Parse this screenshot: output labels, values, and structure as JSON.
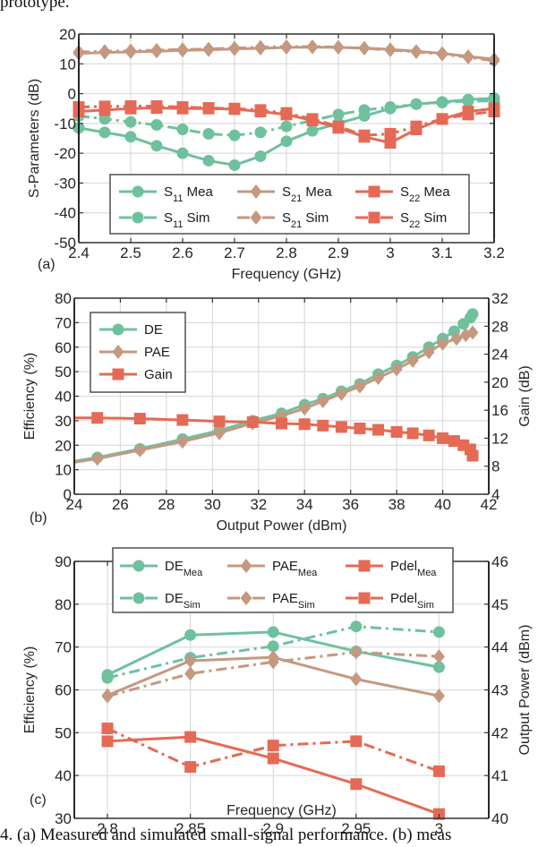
{
  "header_fragment": "prototype.",
  "caption": "4.  (a) Measured and simulated small-signal performance. (b) meas",
  "chart_data": [
    {
      "id": "a",
      "panel_label": "(a)",
      "type": "line",
      "title": "",
      "xlabel": "Frequency (GHz)",
      "ylabel": "S-Parameters (dB)",
      "xlim": [
        2.4,
        3.2
      ],
      "ylim": [
        -50,
        20
      ],
      "xticks": [
        2.4,
        2.5,
        2.6,
        2.7,
        2.8,
        2.9,
        3,
        3.1,
        3.2
      ],
      "xtick_labels": [
        "2.4",
        "2.5",
        "2.6",
        "2.7",
        "2.8",
        "2.9",
        "3",
        "3.1",
        "3.2"
      ],
      "yticks": [
        -50,
        -40,
        -30,
        -20,
        -10,
        0,
        10,
        20
      ],
      "ytick_labels": [
        "-50",
        "-40",
        "-30",
        "-20",
        "-10",
        "0",
        "10",
        "20"
      ],
      "grid": true,
      "legend_position": "bottom-center",
      "x": [
        2.4,
        2.45,
        2.5,
        2.55,
        2.6,
        2.65,
        2.7,
        2.75,
        2.8,
        2.85,
        2.9,
        2.95,
        3.0,
        3.05,
        3.1,
        3.15,
        3.2
      ],
      "series": [
        {
          "name": "S11 Mea",
          "base": "S",
          "sub": "11",
          "suffix": " Mea",
          "color": "#6fc19e",
          "marker": "circle",
          "dash": "solid",
          "values": [
            -11.5,
            -13,
            -14.5,
            -17.5,
            -20,
            -22.5,
            -24,
            -21,
            -16,
            -12.5,
            -10,
            -7.5,
            -5,
            -3.5,
            -2.8,
            -2,
            -1.5
          ]
        },
        {
          "name": "S11 Sim",
          "base": "S",
          "sub": "11",
          "suffix": " Sim",
          "color": "#6fc19e",
          "marker": "circle",
          "dash": "dashdot",
          "values": [
            -7.5,
            -8.5,
            -9.5,
            -10.5,
            -12,
            -13.5,
            -14,
            -13,
            -11,
            -9,
            -7,
            -5.5,
            -4.5,
            -3.5,
            -3,
            -2.5,
            -2.5
          ]
        },
        {
          "name": "S21 Mea",
          "base": "S",
          "sub": "21",
          "suffix": " Mea",
          "color": "#c59880",
          "marker": "diamond",
          "dash": "solid",
          "values": [
            13.5,
            13.8,
            14,
            14.2,
            14.5,
            14.7,
            15,
            15.2,
            15.5,
            15.6,
            15.5,
            15.3,
            14.8,
            14.2,
            13.5,
            12.5,
            11.5
          ]
        },
        {
          "name": "S21 Sim",
          "base": "S",
          "sub": "21",
          "suffix": " Sim",
          "color": "#c59880",
          "marker": "diamond",
          "dash": "dashdot",
          "values": [
            14,
            14.2,
            14.4,
            14.6,
            14.8,
            15,
            15.3,
            15.6,
            15.8,
            15.8,
            15.6,
            15.2,
            14.6,
            14,
            13.2,
            12.2,
            11
          ]
        },
        {
          "name": "S22 Mea",
          "base": "S",
          "sub": "22",
          "suffix": " Mea",
          "color": "#e56a55",
          "marker": "square",
          "dash": "solid",
          "values": [
            -6,
            -5.5,
            -5,
            -4.8,
            -5,
            -5,
            -5.2,
            -6,
            -7,
            -9,
            -11.5,
            -14.5,
            -16.5,
            -12,
            -8.5,
            -6,
            -5
          ]
        },
        {
          "name": "S22 Sim",
          "base": "S",
          "sub": "22",
          "suffix": " Sim",
          "color": "#e56a55",
          "marker": "square",
          "dash": "dashdot",
          "values": [
            -4.5,
            -4.3,
            -4.2,
            -4.2,
            -4.5,
            -4.8,
            -5,
            -5.5,
            -6.5,
            -8.5,
            -11,
            -14,
            -13.5,
            -11,
            -8.5,
            -7,
            -6
          ]
        }
      ]
    },
    {
      "id": "b",
      "panel_label": "(b)",
      "type": "line",
      "title": "",
      "xlabel": "Output Power (dBm)",
      "ylabel": "Efficiency (%)",
      "y2label": "Gain (dB)",
      "xlim": [
        24,
        42
      ],
      "ylim": [
        0,
        80
      ],
      "y2lim": [
        4,
        32
      ],
      "xticks": [
        24,
        26,
        28,
        30,
        32,
        34,
        36,
        38,
        40,
        42
      ],
      "xtick_labels": [
        "24",
        "26",
        "28",
        "30",
        "32",
        "34",
        "36",
        "38",
        "40",
        "42"
      ],
      "yticks": [
        0,
        10,
        20,
        30,
        40,
        50,
        60,
        70,
        80
      ],
      "ytick_labels": [
        "0",
        "10",
        "20",
        "30",
        "40",
        "50",
        "60",
        "70",
        "80"
      ],
      "y2ticks": [
        4,
        8,
        12,
        16,
        20,
        24,
        28,
        32
      ],
      "y2tick_labels": [
        "4",
        "8",
        "12",
        "16",
        "20",
        "24",
        "28",
        "32"
      ],
      "grid": true,
      "legend_position": "top-left",
      "series": [
        {
          "name": "DE",
          "color": "#6fc19e",
          "marker": "circle",
          "dash": "solid",
          "axis": "left",
          "x": [
            24,
            25,
            26.85,
            28.7,
            30.3,
            31.75,
            33,
            34,
            34.8,
            35.6,
            36.4,
            37.2,
            38,
            38.7,
            39.4,
            40,
            40.5,
            40.9,
            41.2,
            41.3
          ],
          "y": [
            13.5,
            15,
            18.5,
            22.5,
            26,
            30,
            33,
            36.5,
            39,
            42,
            45,
            49,
            52.5,
            56,
            60,
            63.5,
            66.5,
            69.5,
            72,
            73.5
          ],
          "markers_from": 1
        },
        {
          "name": "PAE",
          "color": "#c59880",
          "marker": "diamond",
          "dash": "solid",
          "axis": "left",
          "x": [
            24,
            25,
            26.85,
            28.7,
            30.3,
            31.75,
            33,
            34,
            34.8,
            35.6,
            36.4,
            37.2,
            38,
            38.7,
            39.4,
            40,
            40.6,
            41,
            41.3
          ],
          "y": [
            13,
            14.5,
            18,
            21.5,
            25,
            29,
            32,
            35,
            38,
            41,
            44,
            47.5,
            51,
            54.5,
            58,
            61.5,
            63.5,
            65,
            66
          ],
          "markers_from": 1
        },
        {
          "name": "Gain",
          "color": "#e56a55",
          "marker": "square",
          "dash": "solid",
          "axis": "right",
          "x": [
            24,
            25,
            26.85,
            28.7,
            30.3,
            31.75,
            33,
            34,
            34.8,
            35.6,
            36.4,
            37.2,
            38,
            38.7,
            39.4,
            40,
            40.5,
            40.9,
            41.2,
            41.3
          ],
          "y": [
            14.9,
            14.9,
            14.8,
            14.6,
            14.4,
            14.3,
            14.1,
            14,
            13.8,
            13.6,
            13.4,
            13.2,
            12.9,
            12.7,
            12.4,
            12,
            11.6,
            11,
            10.4,
            9.5
          ],
          "markers_from": 1
        }
      ]
    },
    {
      "id": "c",
      "panel_label": "(c)",
      "type": "line",
      "title": "",
      "xlabel": "Frequency (GHz)",
      "ylabel": "Efficiency (%)",
      "y2label": "Output Power (dBm)",
      "xlim": [
        2.78,
        3.03
      ],
      "ylim": [
        30,
        90
      ],
      "y2lim": [
        40,
        46
      ],
      "xticks": [
        2.8,
        2.85,
        2.9,
        2.95,
        3.0
      ],
      "xtick_labels": [
        "2.8",
        "2.85",
        "2.9",
        "2.95",
        "3"
      ],
      "yticks": [
        30,
        40,
        50,
        60,
        70,
        80,
        90
      ],
      "ytick_labels": [
        "30",
        "40",
        "50",
        "60",
        "70",
        "80",
        "90"
      ],
      "y2ticks": [
        40,
        41,
        42,
        43,
        44,
        45,
        46
      ],
      "y2tick_labels": [
        "40",
        "41",
        "42",
        "43",
        "44",
        "45",
        "46"
      ],
      "grid": true,
      "legend_position": "top-center",
      "x": [
        2.8,
        2.85,
        2.9,
        2.95,
        3.0
      ],
      "series": [
        {
          "name": "DE_Mea",
          "base": "DE",
          "sub": "Mea",
          "color": "#6fc19e",
          "marker": "circle",
          "dash": "solid",
          "axis": "left",
          "values": [
            63.5,
            72.8,
            73.5,
            69,
            65.3
          ]
        },
        {
          "name": "DE_Sim",
          "base": "DE",
          "sub": "Sim",
          "color": "#6fc19e",
          "marker": "circle",
          "dash": "dashdot",
          "axis": "left",
          "values": [
            62.8,
            67.5,
            70.2,
            74.8,
            73.5
          ]
        },
        {
          "name": "PAE_Mea",
          "base": "PAE",
          "sub": "Mea",
          "color": "#c59880",
          "marker": "diamond",
          "dash": "solid",
          "axis": "left",
          "values": [
            58.7,
            66.8,
            67.6,
            62.5,
            58.6
          ]
        },
        {
          "name": "PAE_Sim",
          "base": "PAE",
          "sub": "Sim",
          "color": "#c59880",
          "marker": "diamond",
          "dash": "dashdot",
          "axis": "left",
          "values": [
            58.5,
            63.8,
            66.5,
            68.8,
            67.8
          ]
        },
        {
          "name": "Pdel_Mea",
          "base": "Pdel",
          "sub": "Mea",
          "color": "#e56a55",
          "marker": "square",
          "dash": "solid",
          "axis": "right",
          "values": [
            41.8,
            41.9,
            41.4,
            40.8,
            40.1
          ]
        },
        {
          "name": "Pdel_Sim",
          "base": "Pdel",
          "sub": "Sim",
          "color": "#e56a55",
          "marker": "square",
          "dash": "dashdot",
          "axis": "right",
          "values": [
            42.1,
            41.2,
            41.7,
            41.8,
            41.1
          ]
        }
      ]
    }
  ]
}
